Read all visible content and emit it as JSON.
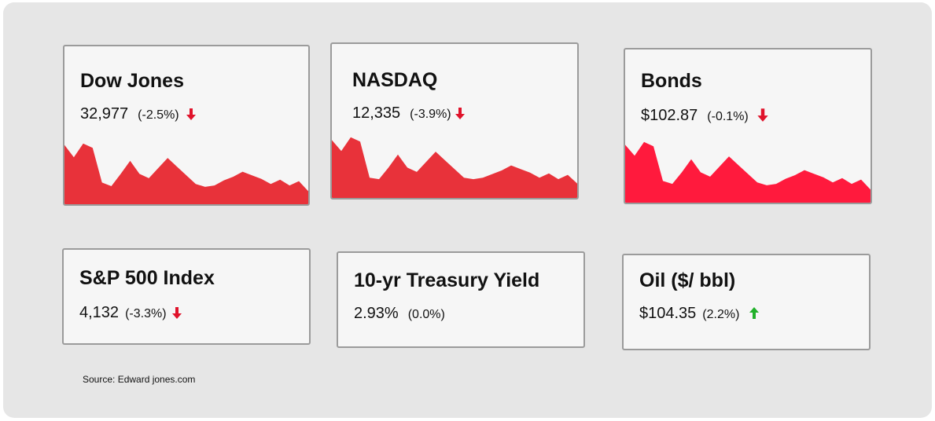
{
  "source": "Source: Edward jones.com",
  "colors": {
    "down_red": "#e8323a",
    "bonds_red": "#ff1a3d",
    "arrow_red": "#e0132b",
    "arrow_green": "#21b12a",
    "card_bg": "#f6f6f6",
    "card_border": "#9b9b9b",
    "panel_bg": "#e6e6e6"
  },
  "cards": [
    {
      "name": "Dow Jones",
      "value": "32,977",
      "change": "(-2.5%)",
      "direction": "down-arrow-icon"
    },
    {
      "name": "NASDAQ",
      "value": "12,335",
      "change": "(-3.9%)",
      "direction": "down-arrow-icon"
    },
    {
      "name": "Bonds",
      "value": "$102.87",
      "change": "(-0.1%)",
      "direction": "down-arrow-icon"
    },
    {
      "name": "S&P 500 Index",
      "value": "4,132",
      "change": "(-3.3%)",
      "direction": "down-arrow-icon"
    },
    {
      "name": "10-yr Treasury Yield",
      "value": "2.93%",
      "change": "(0.0%)",
      "direction": "none"
    },
    {
      "name": "Oil ($/ bbl)",
      "value": "$104.35",
      "change": "(2.2%)",
      "direction": "up-arrow-icon"
    }
  ],
  "chart_data": {
    "type": "area",
    "series": [
      {
        "values": [
          82,
          65,
          84,
          78,
          30,
          25,
          42,
          60,
          42,
          36,
          50,
          64,
          52,
          40,
          28,
          24,
          26,
          33,
          38,
          45,
          40,
          35,
          28,
          34,
          26,
          32,
          18
        ]
      },
      {
        "values": [
          80,
          65,
          84,
          78,
          28,
          26,
          42,
          60,
          42,
          36,
          50,
          64,
          52,
          40,
          28,
          26,
          28,
          33,
          38,
          45,
          40,
          35,
          28,
          34,
          26,
          32,
          20
        ]
      },
      {
        "values": [
          80,
          65,
          84,
          78,
          30,
          26,
          42,
          60,
          42,
          36,
          50,
          64,
          52,
          40,
          28,
          24,
          26,
          33,
          38,
          45,
          40,
          35,
          28,
          34,
          26,
          32,
          18
        ]
      }
    ]
  }
}
